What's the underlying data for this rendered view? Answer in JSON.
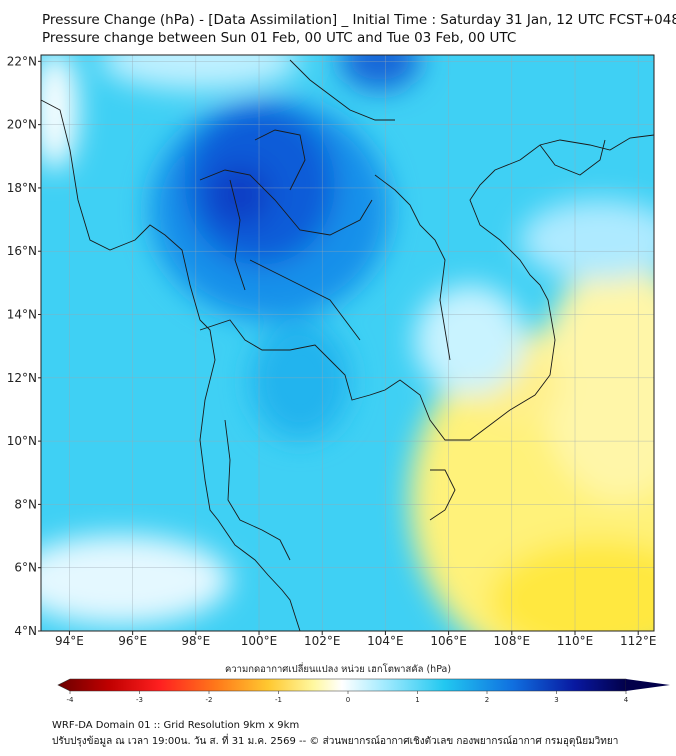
{
  "header": {
    "title_line1": "Pressure Change (hPa) - [Data Assimilation] _ Initial Time : Saturday 31 Jan, 12 UTC FCST+048",
    "title_line2": "Pressure change between Sun 01 Feb, 00 UTC and Tue 03 Feb, 00 UTC"
  },
  "map": {
    "lon_ticks": [
      "94°E",
      "96°E",
      "98°E",
      "100°E",
      "102°E",
      "104°E",
      "106°E",
      "108°E",
      "110°E",
      "112°E"
    ],
    "lat_ticks": [
      "22°N",
      "20°N",
      "18°N",
      "16°N",
      "14°N",
      "12°N",
      "10°N",
      "8°N",
      "6°N",
      "4°N"
    ],
    "lon_values": [
      94,
      96,
      98,
      100,
      102,
      104,
      106,
      108,
      110,
      112
    ],
    "lat_values": [
      22,
      20,
      18,
      16,
      14,
      12,
      10,
      8,
      6,
      4
    ],
    "extent": {
      "lon_min": 93.1,
      "lon_max": 112.5,
      "lat_min": 4,
      "lat_max": 22.2
    },
    "colors": {
      "coast": "#1a1a1a",
      "grid": "#9aa7b0"
    }
  },
  "colorbar": {
    "title": "ความกดอากาศเปลี่ยนแปลง หน่วย เฮกโตพาสคัล (hPa)",
    "ticks": [
      "-4",
      "-3",
      "-2",
      "-1",
      "0",
      "1",
      "2",
      "3",
      "4"
    ],
    "tick_values": [
      -4,
      -3,
      -2,
      -1,
      0,
      1,
      2,
      3,
      4
    ],
    "range": [
      -4,
      4
    ],
    "colors": [
      "#6b0000",
      "#c00000",
      "#ff2020",
      "#ff7a1a",
      "#ffc830",
      "#fff8a0",
      "#ffffff",
      "#a8ecff",
      "#22c8f0",
      "#1070e0",
      "#0818a0",
      "#02004a"
    ]
  },
  "footer": {
    "line1": "WRF-DA Domain 01 :: Grid Resolution 9km x 9km",
    "line2": "ปรับปรุงข้อมูล ณ เวลา 19:00น. วัน ส. ที่ 31 ม.ค. 2569 -- © ส่วนพยากรณ์อากาศเชิงตัวเลข กองพยากรณ์อากาศ กรมอุตุนิยมวิทยา"
  }
}
